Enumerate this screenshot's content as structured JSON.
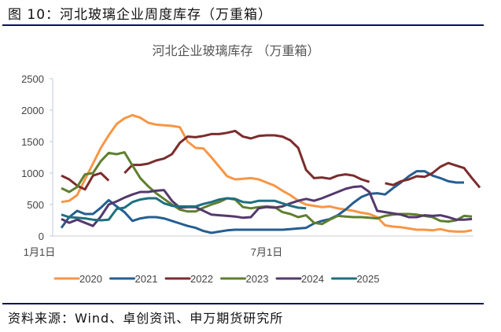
{
  "document": {
    "figure_caption": "图 10：河北玻璃企业周度库存（万重箱）",
    "source": "资料来源：Wind、卓创资讯、申万期货研究所"
  },
  "chart_data": {
    "type": "line",
    "title": "河北企业玻璃库存 （万重箱）",
    "xlabel": "",
    "ylabel": "",
    "ylim": [
      0,
      2500
    ],
    "yticks": [
      0,
      500,
      1000,
      1500,
      2000,
      2500
    ],
    "x_tick_labels": [
      {
        "label": "1月1日",
        "week": 0
      },
      {
        "label": "7月1日",
        "week": 26
      }
    ],
    "x_unit": "week of year",
    "grid": false,
    "legend": "bottom",
    "series": [
      {
        "name": "2020",
        "color": "#f79646",
        "values": [
          540,
          560,
          650,
          900,
          1150,
          1400,
          1600,
          1780,
          1870,
          1920,
          1880,
          1800,
          1770,
          1760,
          1750,
          1730,
          1500,
          1400,
          1390,
          1250,
          1100,
          950,
          900,
          910,
          920,
          900,
          850,
          800,
          720,
          650,
          560,
          500,
          480,
          460,
          470,
          440,
          420,
          400,
          370,
          350,
          300,
          170,
          150,
          140,
          120,
          100,
          100,
          90,
          110,
          80,
          70,
          70,
          90
        ]
      },
      {
        "name": "2021",
        "color": "#255e91",
        "values": [
          130,
          300,
          400,
          350,
          350,
          450,
          570,
          470,
          380,
          240,
          280,
          300,
          300,
          280,
          240,
          200,
          160,
          130,
          80,
          50,
          70,
          90,
          100,
          100,
          100,
          100,
          100,
          100,
          100,
          110,
          120,
          130,
          200,
          240,
          270,
          330,
          420,
          530,
          620,
          670,
          680,
          660,
          760,
          850,
          950,
          1030,
          1030,
          960,
          920,
          870,
          850,
          850,
          null
        ]
      },
      {
        "name": "2022",
        "color": "#7b2c2c",
        "values": [
          960,
          900,
          800,
          740,
          960,
          1000,
          880,
          null,
          1000,
          1130,
          1130,
          1150,
          1200,
          1230,
          1300,
          1480,
          1580,
          1570,
          1590,
          1620,
          1620,
          1640,
          1670,
          1580,
          1550,
          1590,
          1600,
          1600,
          1580,
          1520,
          1400,
          1050,
          920,
          930,
          910,
          960,
          980,
          960,
          900,
          860,
          null,
          840,
          810,
          870,
          900,
          950,
          940,
          1000,
          1100,
          1160,
          1120,
          1080,
          920,
          770
        ]
      },
      {
        "name": "2023",
        "color": "#5f7f2f",
        "values": [
          760,
          700,
          780,
          980,
          1000,
          1190,
          1320,
          1300,
          1330,
          1120,
          920,
          790,
          680,
          590,
          500,
          420,
          390,
          390,
          450,
          500,
          540,
          600,
          580,
          460,
          440,
          460,
          470,
          460,
          380,
          350,
          300,
          330,
          210,
          190,
          260,
          320,
          310,
          300,
          300,
          290,
          280,
          320,
          340,
          350,
          350,
          340,
          320,
          300,
          240,
          230,
          250,
          320,
          310
        ]
      },
      {
        "name": "2024",
        "color": "#54396d",
        "values": [
          270,
          210,
          260,
          210,
          160,
          310,
          500,
          550,
          610,
          660,
          700,
          700,
          720,
          730,
          560,
          450,
          460,
          460,
          400,
          340,
          330,
          320,
          310,
          290,
          300,
          440,
          460,
          450,
          470,
          520,
          560,
          590,
          560,
          600,
          650,
          700,
          750,
          780,
          790,
          700,
          400,
          380,
          360,
          340,
          300,
          300,
          330,
          320,
          330,
          300,
          260,
          260,
          270
        ]
      },
      {
        "name": "2025",
        "color": "#1f6f80",
        "values": [
          340,
          300,
          290,
          280,
          260,
          250,
          260,
          430,
          450,
          540,
          580,
          600,
          600,
          520,
          480,
          470,
          470,
          470,
          510,
          540,
          580,
          600,
          590,
          540,
          530,
          560,
          560,
          560,
          520,
          480,
          450,
          440
        ]
      }
    ]
  }
}
